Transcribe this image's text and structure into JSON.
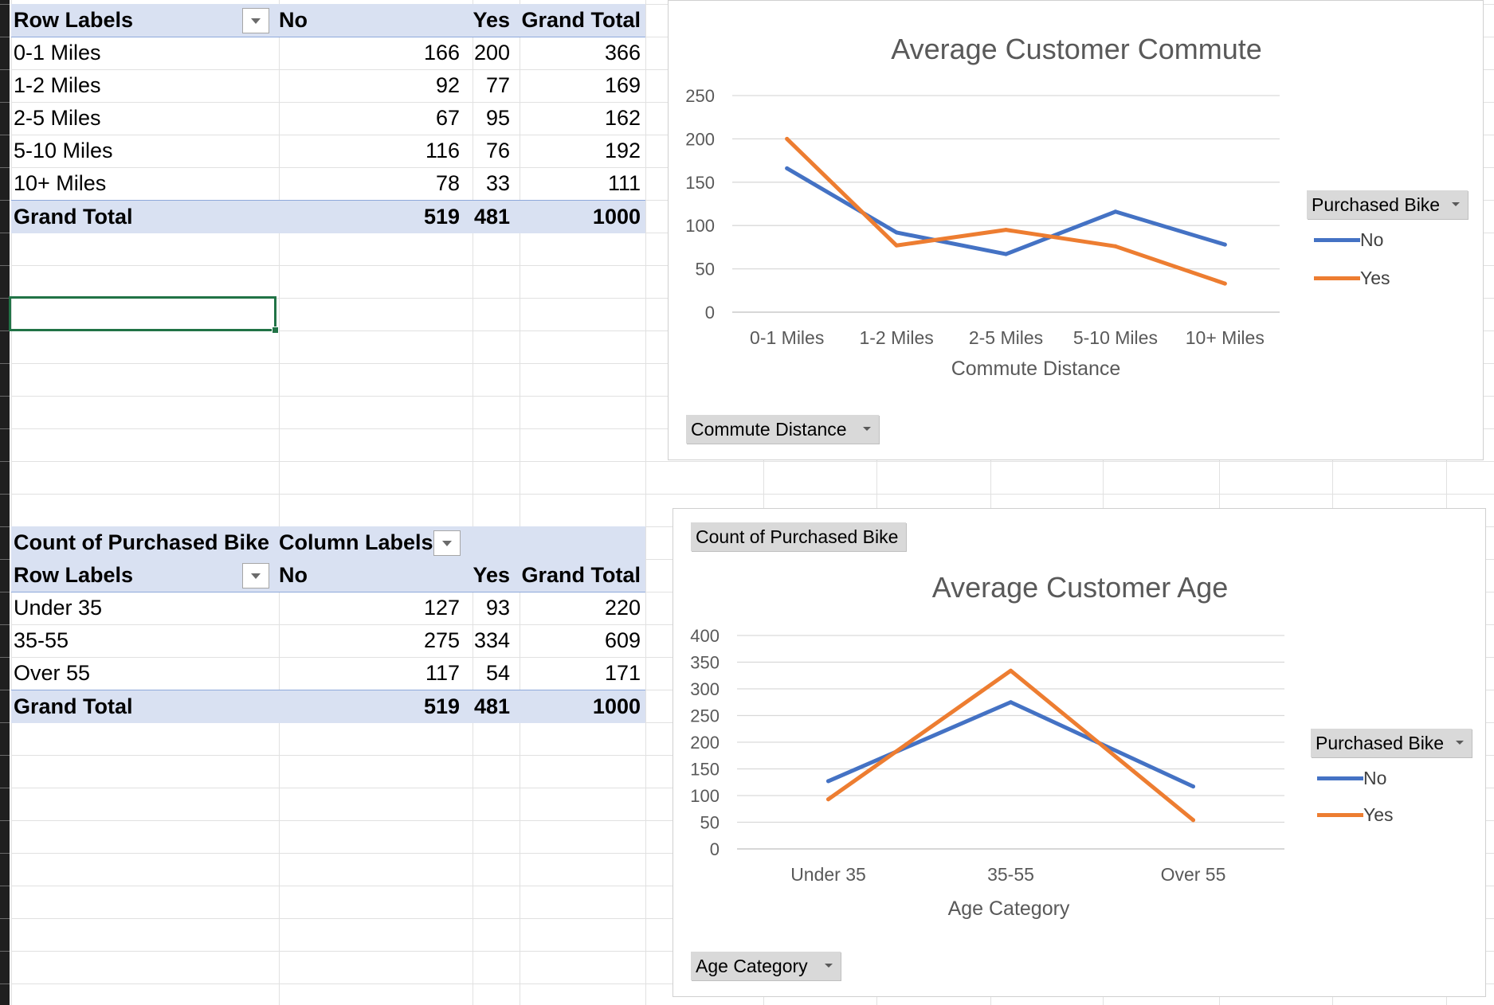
{
  "pivot1": {
    "header": {
      "row_labels": "Row Labels",
      "no": "No",
      "yes": "Yes",
      "grand_total": "Grand Total"
    },
    "rows": [
      {
        "label": "0-1 Miles",
        "no": "166",
        "yes": "200",
        "total": "366"
      },
      {
        "label": "1-2 Miles",
        "no": "92",
        "yes": "77",
        "total": "169"
      },
      {
        "label": "2-5 Miles",
        "no": "67",
        "yes": "95",
        "total": "162"
      },
      {
        "label": "5-10 Miles",
        "no": "116",
        "yes": "76",
        "total": "192"
      },
      {
        "label": "10+ Miles",
        "no": "78",
        "yes": "33",
        "total": "111"
      }
    ],
    "total": {
      "label": "Grand Total",
      "no": "519",
      "yes": "481",
      "total": "1000"
    }
  },
  "pivot2": {
    "values_header": "Count of Purchased Bike",
    "column_labels": "Column Labels",
    "header": {
      "row_labels": "Row Labels",
      "no": "No",
      "yes": "Yes",
      "grand_total": "Grand Total"
    },
    "rows": [
      {
        "label": "Under 35",
        "no": "127",
        "yes": "93",
        "total": "220"
      },
      {
        "label": "35-55",
        "no": "275",
        "yes": "334",
        "total": "609"
      },
      {
        "label": "Over 55",
        "no": "117",
        "yes": "54",
        "total": "171"
      }
    ],
    "total": {
      "label": "Grand Total",
      "no": "519",
      "yes": "481",
      "total": "1000"
    }
  },
  "colors": {
    "no": "#4472c4",
    "yes": "#ed7d31",
    "pivot_header": "#d9e1f2",
    "selection": "#217346"
  },
  "chart_data": [
    {
      "type": "line",
      "title": "Average Customer Commute",
      "xlabel": "Commute Distance",
      "ylabel": "",
      "categories": [
        "0-1 Miles",
        "1-2 Miles",
        "2-5 Miles",
        "5-10 Miles",
        "10+ Miles"
      ],
      "series": [
        {
          "name": "No",
          "values": [
            166,
            92,
            67,
            116,
            78
          ]
        },
        {
          "name": "Yes",
          "values": [
            200,
            77,
            95,
            76,
            33
          ]
        }
      ],
      "yticks": [
        "0",
        "50",
        "100",
        "150",
        "200",
        "250"
      ],
      "ylim": [
        0,
        250
      ],
      "legend_title": "Purchased Bike",
      "legend_position": "right",
      "grid": true,
      "axis_field_button": "Commute Distance"
    },
    {
      "type": "line",
      "title": "Average Customer Age",
      "xlabel": "Age Category",
      "ylabel": "",
      "categories": [
        "Under 35",
        "35-55",
        "Over 55"
      ],
      "series": [
        {
          "name": "No",
          "values": [
            127,
            275,
            117
          ]
        },
        {
          "name": "Yes",
          "values": [
            93,
            334,
            54
          ]
        }
      ],
      "yticks": [
        "0",
        "50",
        "100",
        "150",
        "200",
        "250",
        "300",
        "350",
        "400"
      ],
      "ylim": [
        0,
        400
      ],
      "legend_title": "Purchased Bike",
      "legend_position": "right",
      "grid": true,
      "values_field_button": "Count of Purchased Bike",
      "axis_field_button": "Age Category"
    }
  ]
}
